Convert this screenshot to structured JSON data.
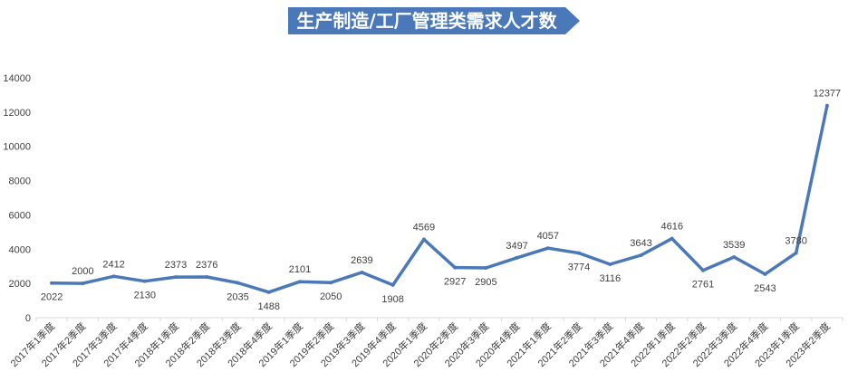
{
  "colors": {
    "line": "#4a78b8",
    "title_bg": "#4a78b8",
    "axis": "#d9d9d9",
    "text": "#404040"
  },
  "chart_data": {
    "type": "line",
    "title": "生产制造/工厂管理类需求人才数",
    "xlabel": "",
    "ylabel": "",
    "ylim": [
      0,
      14000
    ],
    "yticks": [
      0,
      2000,
      4000,
      6000,
      8000,
      10000,
      12000,
      14000
    ],
    "grid": false,
    "legend": "none",
    "categories": [
      "2017年1季度",
      "2017年2季度",
      "2017年3季度",
      "2017年4季度",
      "2018年1季度",
      "2018年2季度",
      "2018年3季度",
      "2018年4季度",
      "2019年1季度",
      "2019年2季度",
      "2019年3季度",
      "2019年4季度",
      "2020年1季度",
      "2020年2季度",
      "2020年3季度",
      "2020年4季度",
      "2021年1季度",
      "2021年2季度",
      "2021年3季度",
      "2021年4季度",
      "2022年1季度",
      "2022年2季度",
      "2022年3季度",
      "2022年4季度",
      "2023年1季度",
      "2023年2季度"
    ],
    "values": [
      2022,
      2000,
      2412,
      2130,
      2373,
      2376,
      2035,
      1488,
      2101,
      2050,
      2639,
      1908,
      4569,
      2927,
      2905,
      3497,
      4057,
      3774,
      3116,
      3643,
      4616,
      2761,
      3539,
      2543,
      3780,
      12377
    ]
  }
}
